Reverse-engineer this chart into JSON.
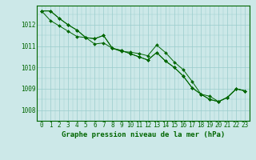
{
  "title": "Graphe pression niveau de la mer (hPa)",
  "background_color": "#cce8e8",
  "plot_bg_color": "#cce8e8",
  "grid_color": "#99cccc",
  "line_color": "#006600",
  "marker_color": "#006600",
  "xlim": [
    -0.5,
    23.5
  ],
  "ylim": [
    1007.5,
    1012.9
  ],
  "xticks": [
    0,
    1,
    2,
    3,
    4,
    5,
    6,
    7,
    8,
    9,
    10,
    11,
    12,
    13,
    14,
    15,
    16,
    17,
    18,
    19,
    20,
    21,
    22,
    23
  ],
  "yticks": [
    1008,
    1009,
    1010,
    1011,
    1012
  ],
  "series1": [
    1012.65,
    1012.65,
    1012.3,
    1012.0,
    1011.75,
    1011.4,
    1011.35,
    1011.5,
    1010.9,
    1010.8,
    1010.65,
    1010.5,
    1010.35,
    1010.7,
    1010.3,
    1010.0,
    1009.6,
    1009.05,
    1008.75,
    1008.5,
    1008.4,
    1008.6,
    1009.0,
    1008.9
  ],
  "series2": [
    1012.65,
    1012.2,
    1011.95,
    1011.7,
    1011.45,
    1011.4,
    1011.1,
    1011.15,
    1010.9,
    1010.75,
    1010.72,
    1010.65,
    1010.55,
    1011.05,
    1010.7,
    1010.25,
    1009.9,
    1009.35,
    1008.75,
    1008.65,
    1008.4,
    1008.6,
    1009.0,
    1008.9
  ],
  "series3": [
    1012.65,
    1012.65,
    1012.3,
    1012.0,
    1011.75,
    1011.4,
    1011.35,
    1011.5,
    1010.9,
    1010.8,
    1010.65,
    1010.5,
    1010.35,
    1010.7,
    1010.3,
    1010.0,
    1009.6,
    1009.05,
    1008.75,
    1008.5,
    1008.4,
    1008.6,
    1009.0,
    1008.9
  ],
  "title_fontsize": 6.5,
  "tick_fontsize": 5.5
}
